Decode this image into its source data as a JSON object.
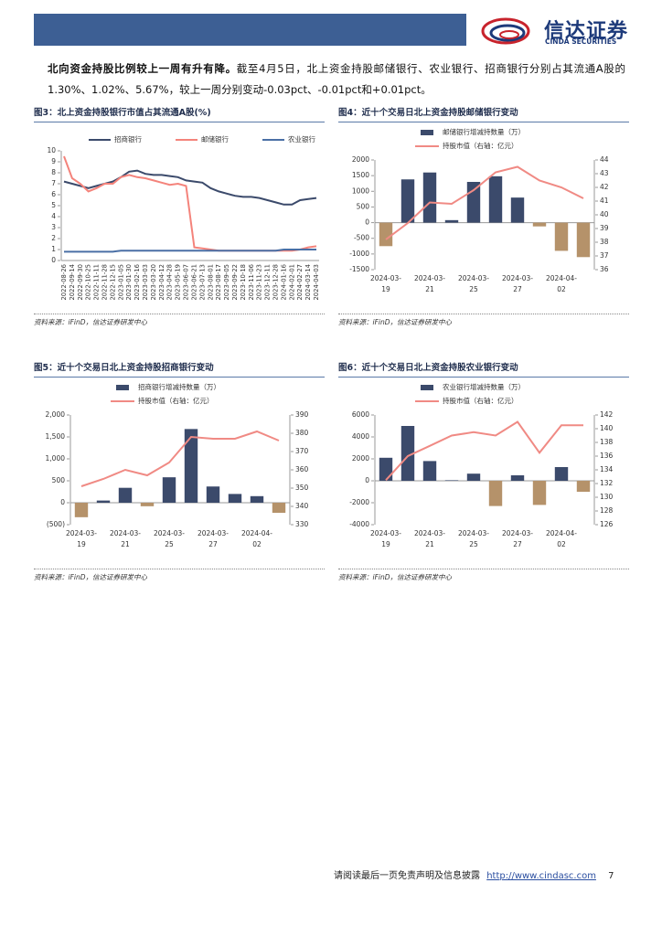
{
  "header": {
    "logo_cn": "信达证券",
    "logo_en": "CINDA SECURITIES"
  },
  "paragraph": {
    "lead": "北向资金持股比例较上一周有升有降。",
    "body": "截至4月5日，北上资金持股邮储银行、农业银行、招商银行分别占其流通A股的1.30%、1.02%、5.67%，较上一周分别变动-0.03pct、-0.01pct和+0.01pct。"
  },
  "chart_data": [
    {
      "type": "line",
      "title": "图3：北上资金持股银行市值占其流通A股(%)",
      "source": "资料来源：iFinD，信达证券研发中心",
      "categories": [
        "2022-08-26",
        "2022-09-14",
        "2022-09-30",
        "2022-10-25",
        "2022-11-11",
        "2022-11-28",
        "2022-12-15",
        "2023-01-05",
        "2023-01-30",
        "2023-02-16",
        "2023-03-03",
        "2023-03-20",
        "2023-04-12",
        "2023-04-28",
        "2023-05-19",
        "2023-06-07",
        "2023-06-21",
        "2023-07-13",
        "2023-08-01",
        "2023-08-17",
        "2023-09-05",
        "2023-09-22",
        "2023-10-18",
        "2023-11-06",
        "2023-11-23",
        "2023-12-11",
        "2023-12-28",
        "2024-01-16",
        "2024-02-01",
        "2024-02-27",
        "2024-03-14",
        "2024-04-03"
      ],
      "series": [
        {
          "name": "招商银行",
          "color": "#3b4a6b",
          "values": [
            7.2,
            7.0,
            6.8,
            6.6,
            6.8,
            7.0,
            7.2,
            7.6,
            8.1,
            8.2,
            7.9,
            7.8,
            7.8,
            7.7,
            7.6,
            7.3,
            7.2,
            7.1,
            6.6,
            6.3,
            6.1,
            5.9,
            5.8,
            5.8,
            5.7,
            5.5,
            5.3,
            5.1,
            5.1,
            5.5,
            5.6,
            5.7
          ]
        },
        {
          "name": "邮储银行",
          "color": "#f4837b",
          "values": [
            9.5,
            7.5,
            7.0,
            6.3,
            6.6,
            7.0,
            7.0,
            7.6,
            7.8,
            7.6,
            7.5,
            7.3,
            7.1,
            6.9,
            7.0,
            6.8,
            1.2,
            1.1,
            1.0,
            0.9,
            0.9,
            0.9,
            0.9,
            0.9,
            0.9,
            0.9,
            0.9,
            0.9,
            0.9,
            1.0,
            1.2,
            1.3
          ]
        },
        {
          "name": "农业银行",
          "color": "#4a6fa5",
          "values": [
            0.8,
            0.8,
            0.8,
            0.8,
            0.8,
            0.8,
            0.8,
            0.9,
            0.9,
            0.9,
            0.9,
            0.9,
            0.9,
            0.9,
            0.9,
            0.9,
            0.9,
            0.9,
            0.9,
            0.9,
            0.9,
            0.9,
            0.9,
            0.9,
            0.9,
            0.9,
            0.9,
            1.0,
            1.0,
            1.0,
            1.0,
            1.0
          ]
        }
      ],
      "ylim": [
        0,
        10
      ],
      "yticks": [
        0,
        1,
        2,
        3,
        4,
        5,
        6,
        7,
        8,
        9,
        10
      ],
      "grid": false
    },
    {
      "type": "combo",
      "title": "图4：近十个交易日北上资金持股邮储银行变动",
      "source": "资料来源：iFinD，信达证券研发中心",
      "categories": [
        "2024-03-19",
        null,
        "2024-03-21",
        null,
        "2024-03-25",
        null,
        "2024-03-27",
        null,
        "2024-04-02",
        null
      ],
      "series": [
        {
          "name": "邮储银行增减持数量（万）",
          "type": "bar",
          "color": "#3b4a6b",
          "negative_color": "#b5926a",
          "values": [
            -750,
            1380,
            1600,
            80,
            1300,
            1480,
            800,
            -120,
            -900,
            -1100
          ]
        },
        {
          "name": "持股市值（右轴：亿元）",
          "type": "line",
          "axis": "y2",
          "color": "#f08a84",
          "values": [
            38.2,
            39.4,
            40.9,
            40.8,
            41.8,
            43.1,
            43.5,
            42.5,
            42.0,
            41.2
          ]
        }
      ],
      "ylim": [
        -1500,
        2000
      ],
      "yticks": [
        -1500,
        -1000,
        -500,
        0,
        500,
        1000,
        1500,
        2000
      ],
      "y2lim": [
        36,
        44
      ],
      "y2ticks": [
        36,
        37,
        38,
        39,
        40,
        41,
        42,
        43,
        44
      ]
    },
    {
      "type": "combo",
      "title": "图5：近十个交易日北上资金持股招商银行变动",
      "source": "资料来源：iFinD，信达证券研发中心",
      "categories": [
        "2024-03-19",
        null,
        "2024-03-21",
        null,
        "2024-03-25",
        null,
        "2024-03-27",
        null,
        "2024-04-02",
        null
      ],
      "series": [
        {
          "name": "招商银行增减持数量（万）",
          "type": "bar",
          "color": "#3b4a6b",
          "negative_color": "#b5926a",
          "values": [
            -330,
            50,
            340,
            -80,
            580,
            1680,
            370,
            200,
            150,
            -230
          ]
        },
        {
          "name": "持股市值（右轴：亿元）",
          "type": "line",
          "axis": "y2",
          "color": "#f08a84",
          "values": [
            351,
            355,
            360,
            357,
            364,
            378,
            377,
            377,
            381,
            376
          ]
        }
      ],
      "ylim": [
        -500,
        2000
      ],
      "yticks": [
        {
          "value": -500,
          "label": "(500)"
        },
        0,
        500,
        {
          "value": 1000,
          "label": "1,000"
        },
        {
          "value": 1500,
          "label": "1,500"
        },
        {
          "value": 2000,
          "label": "2,000"
        }
      ],
      "y2lim": [
        330,
        390
      ],
      "y2ticks": [
        330,
        340,
        350,
        360,
        370,
        380,
        390
      ]
    },
    {
      "type": "combo",
      "title": "图6：近十个交易日北上资金持股农业银行变动",
      "source": "资料来源：iFinD，信达证券研发中心",
      "categories": [
        "2024-03-19",
        null,
        "2024-03-21",
        null,
        "2024-03-25",
        null,
        "2024-03-27",
        null,
        "2024-04-02",
        null
      ],
      "series": [
        {
          "name": "农业银行增减持数量（万）",
          "type": "bar",
          "color": "#3b4a6b",
          "negative_color": "#b5926a",
          "values": [
            2100,
            5000,
            1800,
            50,
            650,
            -2300,
            500,
            -2200,
            1250,
            -1000
          ]
        },
        {
          "name": "持股市值（右轴：亿元）",
          "type": "line",
          "axis": "y2",
          "color": "#f08a84",
          "values": [
            132.5,
            136,
            137.5,
            139,
            139.5,
            139,
            141,
            136.5,
            140.5,
            140.5
          ]
        }
      ],
      "ylim": [
        -4000,
        6000
      ],
      "yticks": [
        -4000,
        -2000,
        0,
        2000,
        4000,
        6000
      ],
      "y2lim": [
        126,
        142
      ],
      "y2ticks": [
        126,
        128,
        130,
        132,
        134,
        136,
        138,
        140,
        142
      ]
    }
  ],
  "footer": {
    "notice": "请阅读最后一页免责声明及信息披露",
    "url": "http://www.cindasc.com",
    "page": "7"
  }
}
